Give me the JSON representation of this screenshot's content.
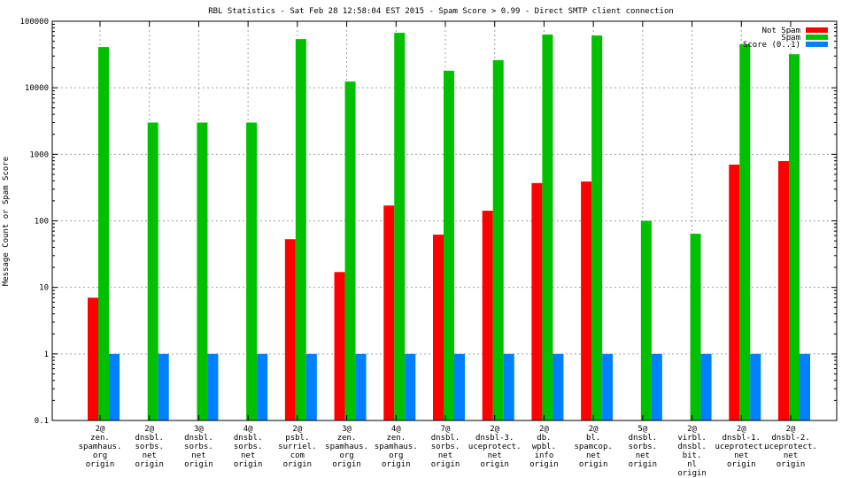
{
  "chart_data": {
    "type": "bar",
    "title": "RBL Statistics - Sat Feb 28 12:58:04 EST 2015 - Spam Score > 0.99 - Direct SMTP client connection",
    "xlabel": "",
    "ylabel": "Message Count or Spam Score",
    "yscale": "log",
    "ylim": [
      0.1,
      100000
    ],
    "yticks": [
      "0.1",
      "1",
      "10",
      "100",
      "1000",
      "10000",
      "100000"
    ],
    "grid": true,
    "legend_position": "top-right",
    "categories": [
      [
        "2@",
        "zen.",
        "spamhaus.",
        "org",
        "origin"
      ],
      [
        "2@",
        "dnsbl.",
        "sorbs.",
        "net",
        "origin"
      ],
      [
        "3@",
        "dnsbl.",
        "sorbs.",
        "net",
        "origin"
      ],
      [
        "4@",
        "dnsbl.",
        "sorbs.",
        "net",
        "origin"
      ],
      [
        "2@",
        "psbl.",
        "surriel.",
        "com",
        "origin"
      ],
      [
        "3@",
        "zen.",
        "spamhaus.",
        "org",
        "origin"
      ],
      [
        "4@",
        "zen.",
        "spamhaus.",
        "org",
        "origin"
      ],
      [
        "7@",
        "dnsbl.",
        "sorbs.",
        "net",
        "origin"
      ],
      [
        "2@",
        "dnsbl-3.",
        "uceprotect.",
        "net",
        "origin"
      ],
      [
        "2@",
        "db.",
        "wpbl.",
        "info",
        "origin"
      ],
      [
        "2@",
        "bl.",
        "spamcop.",
        "net",
        "origin"
      ],
      [
        "5@",
        "dnsbl.",
        "sorbs.",
        "net",
        "origin"
      ],
      [
        "2@",
        "virbl.",
        "dnsbl.",
        "bit.",
        "nl",
        "origin"
      ],
      [
        "2@",
        "dnsbl-1.",
        "uceprotect.",
        "net",
        "origin"
      ],
      [
        "2@",
        "dnsbl-2.",
        "uceprotect.",
        "net",
        "origin"
      ]
    ],
    "series": [
      {
        "name": "Not Spam",
        "color": "#ff0000",
        "values": [
          7,
          0,
          0,
          0,
          53,
          17,
          170,
          62,
          142,
          370,
          390,
          0,
          0,
          700,
          790
        ]
      },
      {
        "name": "Spam",
        "color": "#00c000",
        "values": [
          41000,
          3000,
          3000,
          3000,
          54000,
          12400,
          67000,
          18000,
          26000,
          63000,
          61000,
          100,
          64,
          45000,
          32000
        ]
      },
      {
        "name": "Score (0..1)",
        "color": "#0080ff",
        "values": [
          1,
          1,
          1,
          1,
          1,
          1,
          1,
          1,
          1,
          1,
          1,
          1,
          1,
          1,
          1
        ]
      }
    ]
  }
}
